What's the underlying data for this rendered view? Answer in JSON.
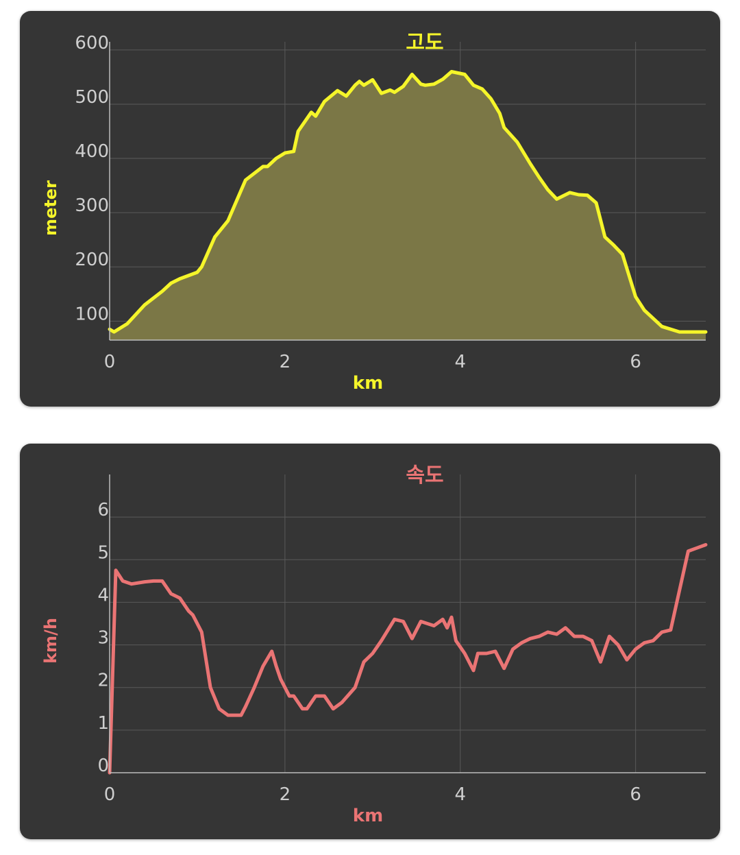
{
  "chart_data": [
    {
      "type": "area",
      "title": "고도",
      "xlabel": "km",
      "ylabel": "meter",
      "color": "#f5f52a",
      "fill_color": "#7b7746",
      "xlim": [
        0,
        6.8
      ],
      "ylim": [
        65,
        615
      ],
      "x_ticks": [
        0,
        2,
        4,
        6
      ],
      "y_ticks": [
        100,
        200,
        300,
        400,
        500,
        600
      ],
      "grid": true,
      "x": [
        0,
        0.05,
        0.2,
        0.4,
        0.6,
        0.7,
        0.8,
        1.0,
        1.05,
        1.2,
        1.35,
        1.55,
        1.75,
        1.8,
        1.9,
        2.0,
        2.1,
        2.15,
        2.3,
        2.35,
        2.45,
        2.6,
        2.7,
        2.8,
        2.85,
        2.9,
        3.0,
        3.1,
        3.2,
        3.25,
        3.35,
        3.45,
        3.55,
        3.6,
        3.7,
        3.8,
        3.9,
        4.05,
        4.15,
        4.25,
        4.35,
        4.45,
        4.5,
        4.65,
        4.8,
        4.9,
        5.0,
        5.1,
        5.25,
        5.35,
        5.45,
        5.55,
        5.65,
        5.75,
        5.85,
        6.0,
        6.1,
        6.3,
        6.5,
        6.8
      ],
      "y": [
        85,
        80,
        95,
        130,
        155,
        170,
        178,
        190,
        200,
        255,
        285,
        360,
        385,
        385,
        400,
        410,
        413,
        450,
        485,
        478,
        505,
        525,
        515,
        535,
        542,
        535,
        545,
        520,
        526,
        522,
        533,
        555,
        537,
        535,
        537,
        546,
        560,
        555,
        535,
        528,
        510,
        483,
        457,
        430,
        390,
        365,
        342,
        325,
        337,
        333,
        332,
        318,
        255,
        240,
        223,
        145,
        120,
        90,
        80,
        80
      ]
    },
    {
      "type": "line",
      "title": "속도",
      "xlabel": "km",
      "ylabel": "km/h",
      "color": "#ea7474",
      "xlim": [
        0,
        6.8
      ],
      "ylim": [
        0,
        7
      ],
      "x_ticks": [
        0,
        2,
        4,
        6
      ],
      "y_ticks": [
        0,
        1,
        2,
        3,
        4,
        5,
        6
      ],
      "grid": true,
      "x": [
        0,
        0.07,
        0.15,
        0.25,
        0.4,
        0.5,
        0.6,
        0.7,
        0.8,
        0.9,
        0.95,
        1.05,
        1.15,
        1.25,
        1.35,
        1.5,
        1.55,
        1.65,
        1.75,
        1.85,
        1.9,
        1.95,
        2.05,
        2.1,
        2.2,
        2.25,
        2.35,
        2.45,
        2.55,
        2.65,
        2.8,
        2.9,
        3.0,
        3.1,
        3.25,
        3.35,
        3.45,
        3.55,
        3.7,
        3.8,
        3.85,
        3.9,
        3.95,
        4.05,
        4.15,
        4.2,
        4.3,
        4.4,
        4.5,
        4.6,
        4.7,
        4.8,
        4.9,
        5.0,
        5.1,
        5.2,
        5.3,
        5.4,
        5.5,
        5.6,
        5.7,
        5.8,
        5.9,
        6.0,
        6.1,
        6.2,
        6.3,
        6.4,
        6.6,
        6.8
      ],
      "y": [
        0,
        4.75,
        4.5,
        4.43,
        4.48,
        4.5,
        4.5,
        4.2,
        4.1,
        3.8,
        3.7,
        3.3,
        2.0,
        1.5,
        1.35,
        1.35,
        1.55,
        2.0,
        2.5,
        2.85,
        2.5,
        2.2,
        1.8,
        1.8,
        1.5,
        1.5,
        1.8,
        1.8,
        1.5,
        1.65,
        2.0,
        2.6,
        2.8,
        3.1,
        3.6,
        3.55,
        3.15,
        3.55,
        3.45,
        3.6,
        3.4,
        3.65,
        3.1,
        2.8,
        2.4,
        2.8,
        2.8,
        2.85,
        2.45,
        2.9,
        3.05,
        3.15,
        3.2,
        3.3,
        3.25,
        3.4,
        3.2,
        3.2,
        3.1,
        2.6,
        3.2,
        3.0,
        2.65,
        2.9,
        3.05,
        3.1,
        3.3,
        3.35,
        5.2,
        5.35
      ]
    }
  ]
}
